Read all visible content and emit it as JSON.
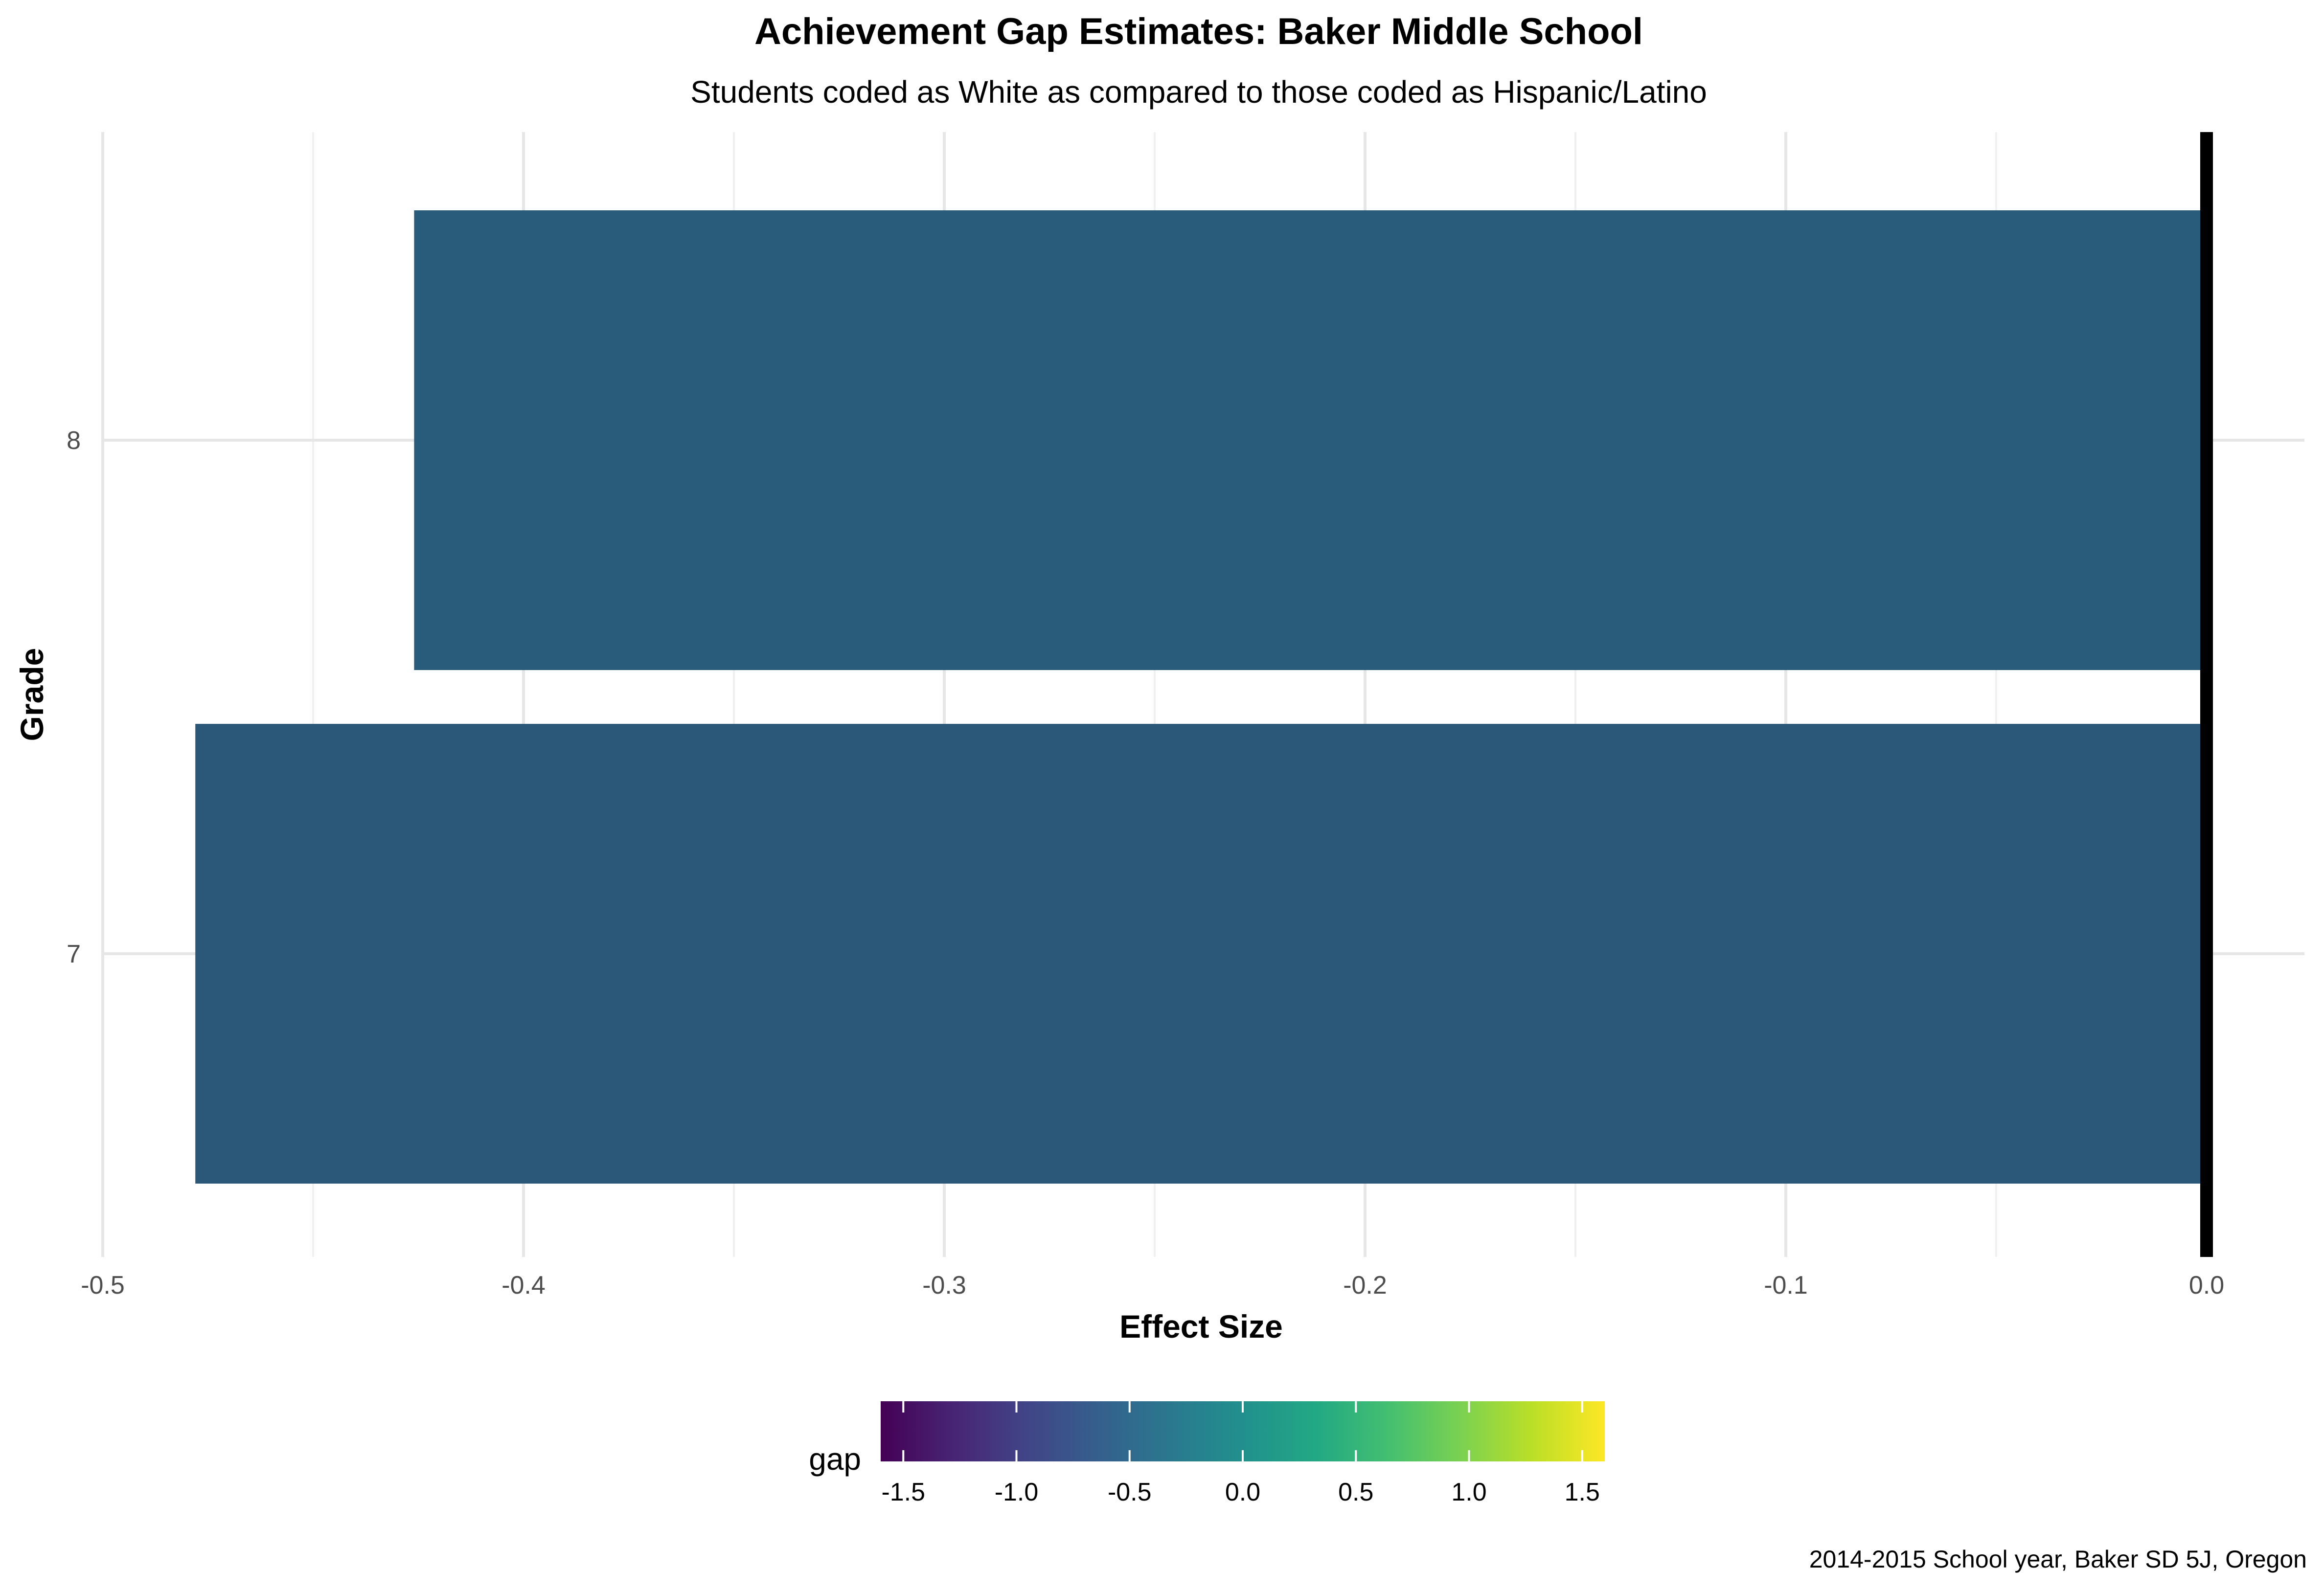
{
  "chart_data": {
    "type": "bar",
    "orientation": "horizontal",
    "title": "Achievement Gap Estimates: Baker Middle School",
    "subtitle": "Students coded as White as compared to those coded as Hispanic/Latino",
    "caption": "2014-2015 School year, Baker SD 5J, Oregon",
    "xlabel": "Effect Size",
    "ylabel": "Grade",
    "categories": [
      "7",
      "8"
    ],
    "values": [
      -0.478,
      -0.426
    ],
    "xlim": [
      -0.5,
      0.0
    ],
    "xticks": [
      -0.5,
      -0.4,
      -0.3,
      -0.2,
      -0.1,
      0.0
    ],
    "xtick_labels": [
      "-0.5",
      "-0.4",
      "-0.3",
      "-0.2",
      "-0.1",
      "0.0"
    ],
    "reference_line": 0.0,
    "grid": true,
    "legend": {
      "title": "gap",
      "position": "bottom",
      "type": "colorbar",
      "palette": "viridis",
      "range": [
        -1.6,
        1.6
      ],
      "ticks": [
        -1.5,
        -1.0,
        -0.5,
        0.0,
        0.5,
        1.0,
        1.5
      ],
      "tick_labels": [
        "-1.5",
        "-1.0",
        "-0.5",
        "0.0",
        "0.5",
        "1.0",
        "1.5"
      ]
    },
    "bar_colors": [
      "#2B5879",
      "#295B7B"
    ]
  }
}
